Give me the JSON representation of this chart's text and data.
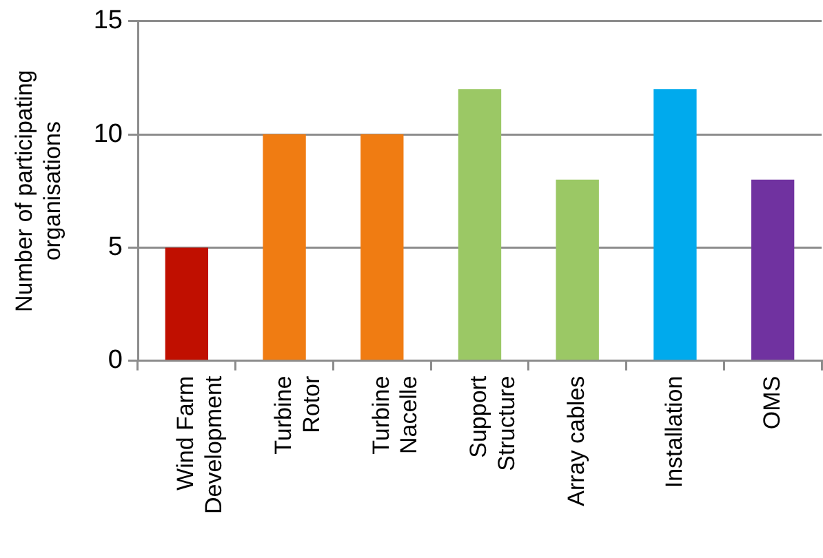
{
  "chart_data": {
    "type": "bar",
    "ylabel": "Number of participating organisations",
    "categories": [
      "Wind Farm Development",
      "Turbine Rotor",
      "Turbine Nacelle",
      "Support Structure",
      "Array cables",
      "Installation",
      "OMS"
    ],
    "values": [
      5,
      10,
      10,
      12,
      8,
      12,
      8
    ],
    "colors": [
      "#c00f00",
      "#f07c12",
      "#f07c12",
      "#9bc865",
      "#9bc865",
      "#00aaed",
      "#7032a0"
    ],
    "ylim": [
      0,
      15
    ],
    "yticks": [
      0,
      5,
      10,
      15
    ],
    "grid": "y",
    "legend": false
  }
}
